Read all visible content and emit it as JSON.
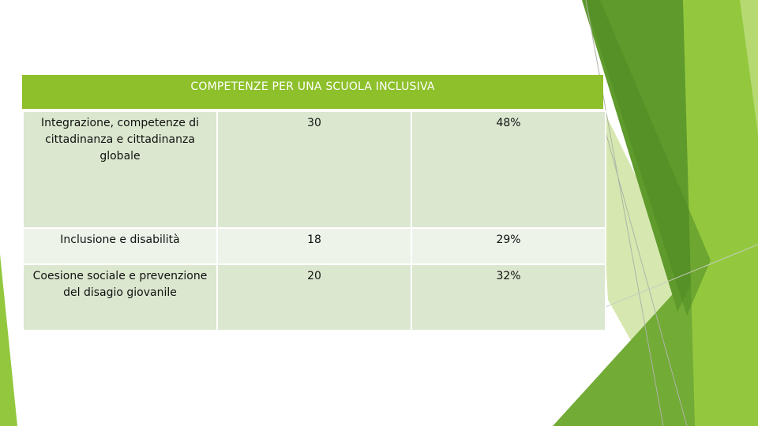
{
  "slide": {
    "table": {
      "title": "COMPETENZE PER UNA SCUOLA INCLUSIVA",
      "rows": [
        {
          "label": "Integrazione, competenze di cittadinanza e cittadinanza globale",
          "count": "30",
          "percent": "48%"
        },
        {
          "label": "Inclusione e disabilità",
          "count": "18",
          "percent": "29%"
        },
        {
          "label": "Coesione sociale e prevenzione del disagio giovanile",
          "count": "20",
          "percent": "32%"
        }
      ]
    },
    "colors": {
      "header_green": "#8dc02a",
      "row_light_green": "#dbe7cf",
      "row_pale_green": "#edf3e9",
      "decor_dark_green": "#5f9a2c",
      "decor_mid_green": "#72ab36",
      "decor_light_green": "#93c83e",
      "decor_pale_green": "#d2e6a6"
    }
  }
}
